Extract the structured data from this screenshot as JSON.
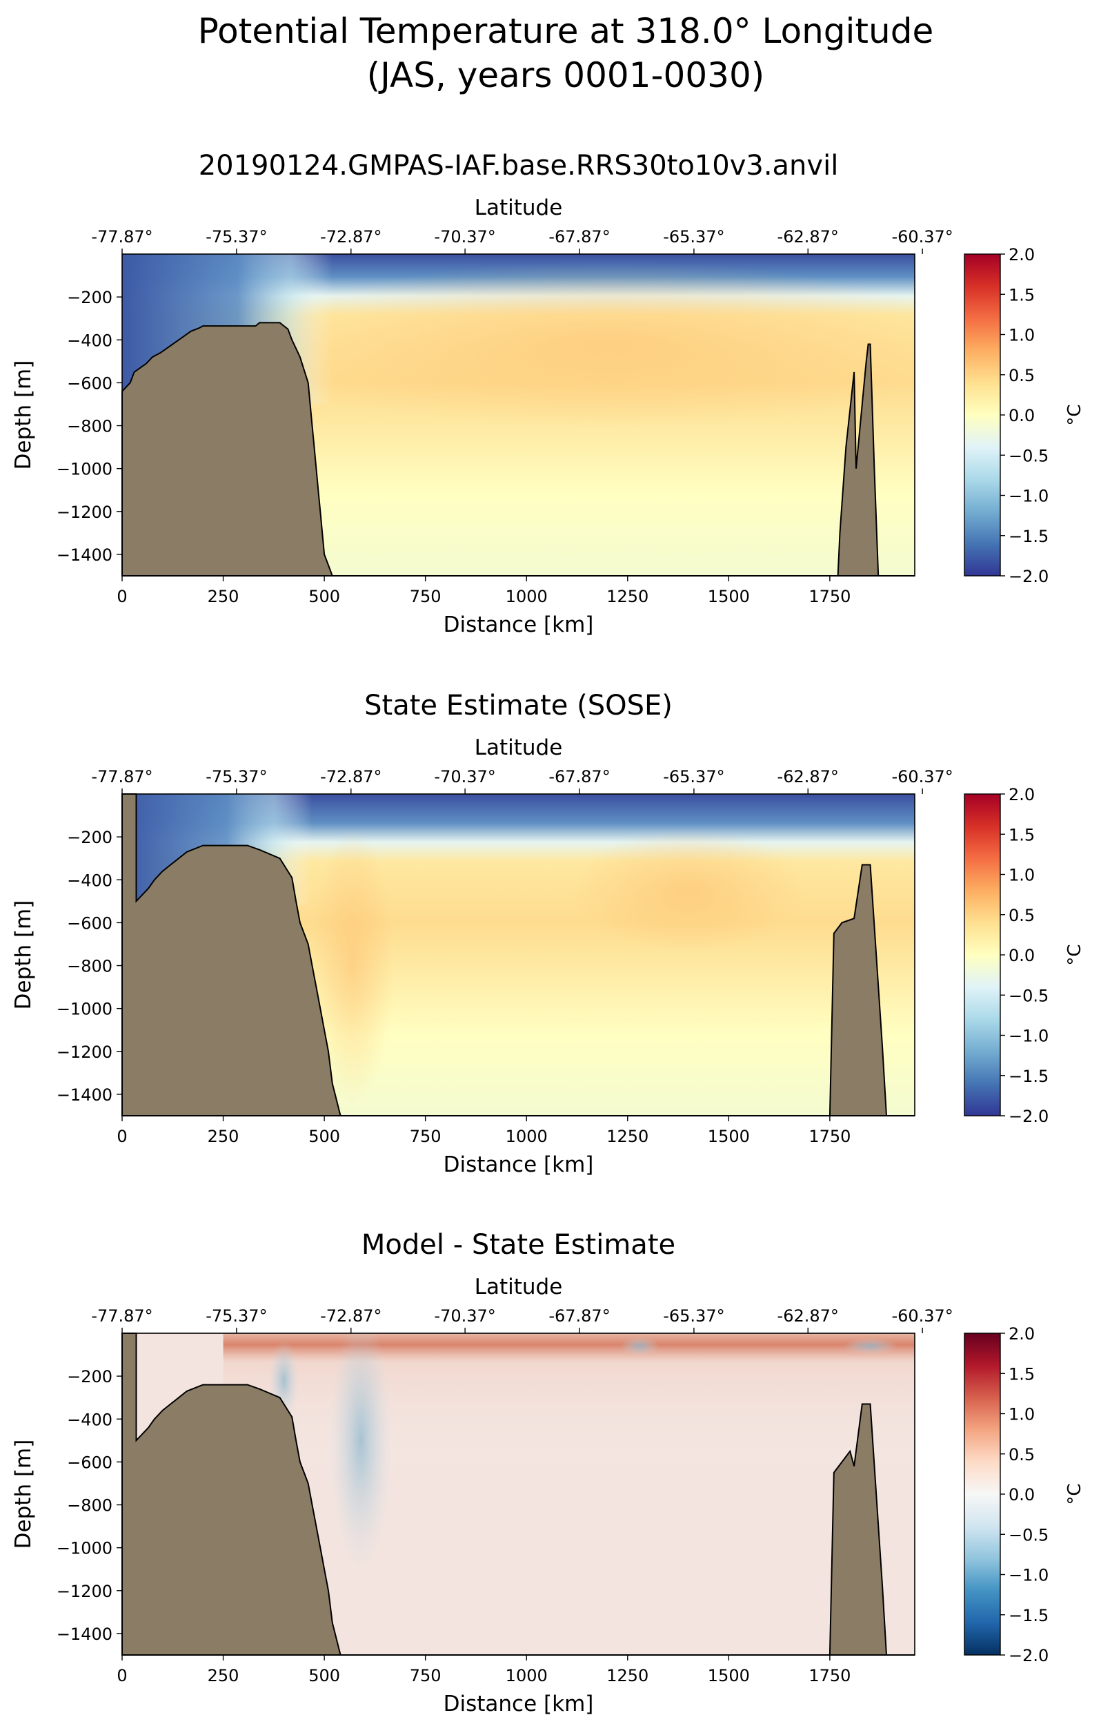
{
  "figure": {
    "title_line1": "Potential Temperature at 318.0° Longitude",
    "title_line2": "(JAS, years 0001-0030)"
  },
  "axes_text": {
    "top_xlabel": "Latitude",
    "xlabel": "Distance [km]",
    "ylabel": "Depth [m]",
    "colorbar_label": "°C"
  },
  "chart_data": [
    {
      "type": "heatmap",
      "title": "20190124.GMPAS-IAF.base.RRS30to10v3.anvil",
      "xlabel": "Distance [km]",
      "ylabel": "Depth [m]",
      "top_xlabel": "Latitude",
      "xlim": [
        0,
        1960
      ],
      "ylim": [
        -1500,
        0
      ],
      "xticks": [
        0,
        250,
        500,
        750,
        1000,
        1250,
        1500,
        1750
      ],
      "yticks": [
        -200,
        -400,
        -600,
        -800,
        -1000,
        -1200,
        -1400
      ],
      "lat_ticks": [
        "-77.87°",
        "-75.37°",
        "-72.87°",
        "-70.37°",
        "-67.87°",
        "-65.37°",
        "-62.87°",
        "-60.37°"
      ],
      "lat_tick_km": [
        0,
        283,
        566,
        848,
        1131,
        1414,
        1696,
        1979
      ],
      "colormap": "RdYlBu_r",
      "colorbar": {
        "label": "°C",
        "min": -2.0,
        "max": 2.0,
        "ticks": [
          2.0,
          1.5,
          1.0,
          0.5,
          0.0,
          -0.5,
          -1.0,
          -1.5,
          -2.0
        ]
      },
      "field_summary": {
        "surface_layer": -1.8,
        "interior_max": 0.5,
        "deep": 0.15,
        "shelf": -1.8
      },
      "bathymetry": {
        "fill_color": "#8b7d65",
        "x": [
          0,
          20,
          30,
          45,
          60,
          75,
          95,
          110,
          125,
          140,
          155,
          170,
          190,
          200,
          330,
          340,
          390,
          410,
          420,
          430,
          440,
          450,
          460,
          465,
          470,
          475,
          480,
          485,
          490,
          495,
          500,
          510,
          520,
          1770,
          1775,
          1790,
          1810,
          1815,
          1830,
          1840,
          1845,
          1850,
          1860,
          1870,
          1960
        ],
        "depth": [
          640,
          600,
          550,
          530,
          510,
          480,
          460,
          440,
          420,
          400,
          380,
          360,
          345,
          335,
          335,
          320,
          320,
          350,
          400,
          440,
          480,
          540,
          600,
          700,
          800,
          900,
          1000,
          1100,
          1200,
          1300,
          1400,
          1450,
          1500,
          1500,
          1300,
          900,
          550,
          1000,
          700,
          500,
          420,
          420,
          1000,
          1500,
          1500
        ]
      }
    },
    {
      "type": "heatmap",
      "title": "State Estimate (SOSE)",
      "xlabel": "Distance [km]",
      "ylabel": "Depth [m]",
      "top_xlabel": "Latitude",
      "xlim": [
        0,
        1960
      ],
      "ylim": [
        -1500,
        0
      ],
      "xticks": [
        0,
        250,
        500,
        750,
        1000,
        1250,
        1500,
        1750
      ],
      "yticks": [
        -200,
        -400,
        -600,
        -800,
        -1000,
        -1200,
        -1400
      ],
      "lat_ticks": [
        "-77.87°",
        "-75.37°",
        "-72.87°",
        "-70.37°",
        "-67.87°",
        "-65.37°",
        "-62.87°",
        "-60.37°"
      ],
      "lat_tick_km": [
        0,
        283,
        566,
        848,
        1131,
        1414,
        1696,
        1979
      ],
      "colormap": "RdYlBu_r",
      "colorbar": {
        "label": "°C",
        "min": -2.0,
        "max": 2.0,
        "ticks": [
          2.0,
          1.5,
          1.0,
          0.5,
          0.0,
          -0.5,
          -1.0,
          -1.5,
          -2.0
        ]
      },
      "field_summary": {
        "surface_layer": -1.8,
        "interior_max": 0.5,
        "deep": 0.1,
        "shelf": -1.8
      },
      "bathymetry": {
        "fill_color": "#8b7d65",
        "x": [
          0,
          35,
          35,
          65,
          80,
          100,
          120,
          140,
          160,
          200,
          310,
          340,
          390,
          420,
          430,
          440,
          460,
          470,
          480,
          490,
          500,
          510,
          520,
          540,
          1750,
          1760,
          1780,
          1810,
          1830,
          1850,
          1880,
          1890,
          1960
        ],
        "depth": [
          0,
          0,
          500,
          440,
          400,
          360,
          330,
          300,
          270,
          240,
          240,
          260,
          300,
          390,
          500,
          600,
          700,
          800,
          900,
          1000,
          1100,
          1200,
          1350,
          1500,
          1500,
          650,
          600,
          580,
          330,
          330,
          1180,
          1500,
          1500
        ]
      }
    },
    {
      "type": "heatmap",
      "title": "Model - State Estimate",
      "xlabel": "Distance [km]",
      "ylabel": "Depth [m]",
      "top_xlabel": "Latitude",
      "xlim": [
        0,
        1960
      ],
      "ylim": [
        -1500,
        0
      ],
      "xticks": [
        0,
        250,
        500,
        750,
        1000,
        1250,
        1500,
        1750
      ],
      "yticks": [
        -200,
        -400,
        -600,
        -800,
        -1000,
        -1200,
        -1400
      ],
      "lat_ticks": [
        "-77.87°",
        "-75.37°",
        "-72.87°",
        "-70.37°",
        "-67.87°",
        "-65.37°",
        "-62.87°",
        "-60.37°"
      ],
      "lat_tick_km": [
        0,
        283,
        566,
        848,
        1131,
        1414,
        1696,
        1979
      ],
      "colormap": "RdBu_r",
      "colorbar": {
        "label": "°C",
        "min": -2.0,
        "max": 2.0,
        "ticks": [
          2.0,
          1.5,
          1.0,
          0.5,
          0.0,
          -0.5,
          -1.0,
          -1.5,
          -2.0
        ]
      },
      "field_summary": {
        "near_surface_warm": 0.8,
        "cold_column_center_km": 600,
        "cold_column_value": -0.4,
        "deep": 0.05
      },
      "bathymetry": {
        "fill_color": "#8b7d65",
        "x": [
          0,
          35,
          35,
          65,
          80,
          100,
          120,
          140,
          160,
          200,
          310,
          340,
          390,
          420,
          430,
          440,
          460,
          470,
          480,
          490,
          500,
          510,
          520,
          540,
          1750,
          1760,
          1780,
          1800,
          1810,
          1830,
          1850,
          1880,
          1890,
          1960
        ],
        "depth": [
          0,
          0,
          500,
          440,
          400,
          360,
          330,
          300,
          270,
          240,
          240,
          260,
          300,
          390,
          500,
          600,
          700,
          800,
          900,
          1000,
          1100,
          1200,
          1350,
          1500,
          1500,
          650,
          600,
          550,
          620,
          330,
          330,
          1180,
          1500,
          1500
        ]
      }
    }
  ]
}
